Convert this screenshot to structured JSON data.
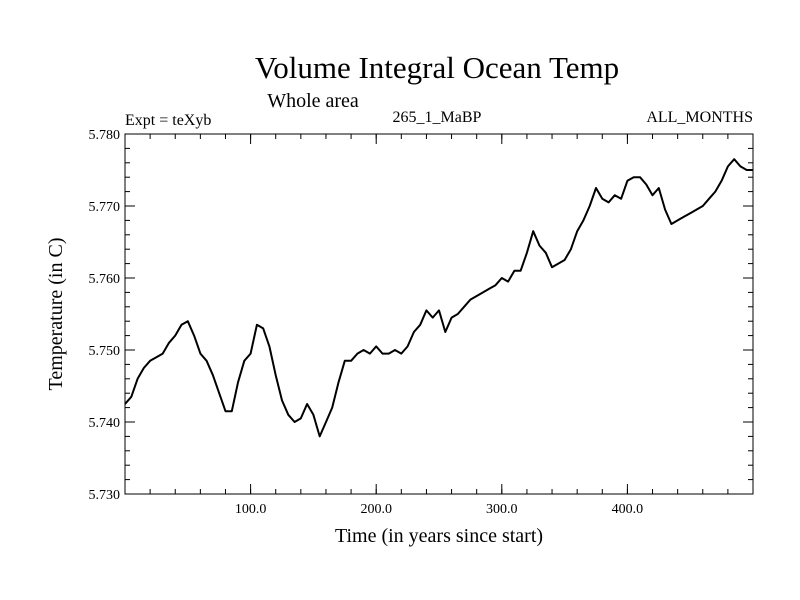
{
  "header": {
    "title": "Volume Integral Ocean Temp",
    "subtitle": "Whole area",
    "expt": "Expt = teXyb",
    "run_id": "265_1_MaBP",
    "months": "ALL_MONTHS"
  },
  "chart_data": {
    "type": "line",
    "title": "Volume Integral Ocean Temp",
    "subtitle": "Whole area",
    "xlabel": "Time (in years since start)",
    "ylabel": "Temperature (in C)",
    "xlim": [
      0,
      500
    ],
    "ylim": [
      5.73,
      5.78
    ],
    "x_ticks": [
      100,
      200,
      300,
      400
    ],
    "x_tick_labels": [
      "100.0",
      "200.0",
      "300.0",
      "400.0"
    ],
    "y_ticks": [
      5.73,
      5.74,
      5.75,
      5.76,
      5.77,
      5.78
    ],
    "y_tick_labels": [
      "5.730",
      "5.740",
      "5.750",
      "5.760",
      "5.770",
      "5.780"
    ],
    "grid": false,
    "series": [
      {
        "color": "#000000",
        "x": [
          0,
          5,
          10,
          15,
          20,
          25,
          30,
          35,
          40,
          45,
          50,
          55,
          60,
          65,
          70,
          75,
          80,
          85,
          90,
          95,
          100,
          105,
          110,
          115,
          120,
          125,
          130,
          135,
          140,
          145,
          150,
          155,
          160,
          165,
          170,
          175,
          180,
          185,
          190,
          195,
          200,
          205,
          210,
          215,
          220,
          225,
          230,
          235,
          240,
          245,
          250,
          255,
          260,
          265,
          270,
          275,
          280,
          285,
          290,
          295,
          300,
          305,
          310,
          315,
          320,
          325,
          330,
          335,
          340,
          345,
          350,
          355,
          360,
          365,
          370,
          375,
          380,
          385,
          390,
          395,
          400,
          405,
          410,
          415,
          420,
          425,
          430,
          435,
          440,
          445,
          450,
          455,
          460,
          465,
          470,
          475,
          480,
          485,
          490,
          495,
          500
        ],
        "y": [
          5.7425,
          5.7435,
          5.746,
          5.7475,
          5.7485,
          5.749,
          5.7495,
          5.751,
          5.752,
          5.7535,
          5.754,
          5.752,
          5.7495,
          5.7485,
          5.7465,
          5.744,
          5.7415,
          5.7415,
          5.7455,
          5.7485,
          5.7495,
          5.7535,
          5.753,
          5.7505,
          5.7465,
          5.743,
          5.741,
          5.74,
          5.7405,
          5.7425,
          5.741,
          5.738,
          5.74,
          5.742,
          5.7455,
          5.7485,
          5.7485,
          5.7495,
          5.75,
          5.7495,
          5.7505,
          5.7495,
          5.7495,
          5.75,
          5.7495,
          5.7505,
          5.7525,
          5.7535,
          5.7555,
          5.7545,
          5.7555,
          5.7525,
          5.7545,
          5.755,
          5.756,
          5.757,
          5.7575,
          5.758,
          5.7585,
          5.759,
          5.76,
          5.7595,
          5.761,
          5.761,
          5.7635,
          5.7665,
          5.7645,
          5.7635,
          5.7615,
          5.762,
          5.7625,
          5.764,
          5.7665,
          5.768,
          5.77,
          5.7725,
          5.771,
          5.7705,
          5.7715,
          5.771,
          5.7735,
          5.774,
          5.774,
          5.773,
          5.7715,
          5.7725,
          5.7695,
          5.7675,
          5.768,
          5.7685,
          5.769,
          5.7695,
          5.77,
          5.771,
          5.772,
          5.7735,
          5.7755,
          5.7765,
          5.7755,
          5.775,
          5.775
        ]
      }
    ]
  }
}
